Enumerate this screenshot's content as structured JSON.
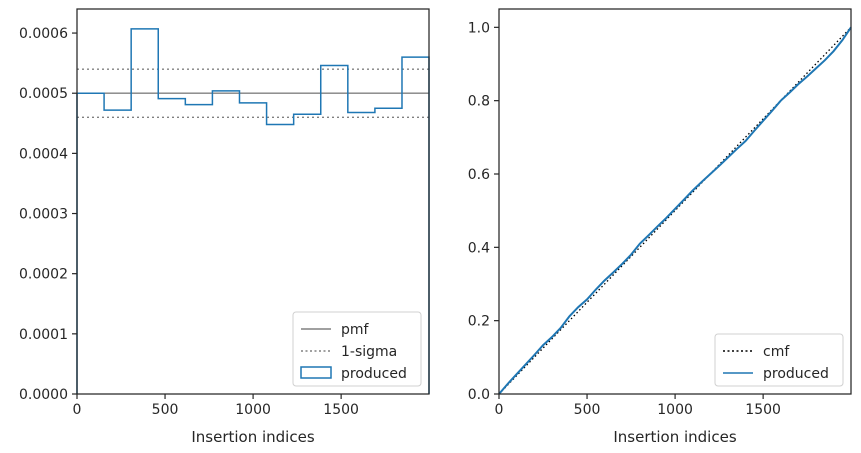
{
  "chart_data": [
    {
      "type": "step",
      "xlabel": "Insertion indices",
      "ylabel": "",
      "xlim": [
        0,
        1999
      ],
      "ylim": [
        0,
        0.00064
      ],
      "xticks": [
        0,
        500,
        1000,
        1500
      ],
      "xtick_labels": [
        "0",
        "500",
        "1000",
        "1500"
      ],
      "yticks": [
        0,
        0.0001,
        0.0002,
        0.0003,
        0.0004,
        0.0005,
        0.0006
      ],
      "ytick_labels": [
        "0.0000",
        "0.0001",
        "0.0002",
        "0.0003",
        "0.0004",
        "0.0005",
        "0.0006"
      ],
      "grid": false,
      "legend_position": "lower right",
      "bin_edges": [
        0,
        153.8,
        307.6,
        461.4,
        615.2,
        769,
        922.8,
        1076.6,
        1230.4,
        1384.2,
        1538,
        1691.8,
        1845.6,
        1999
      ],
      "series": [
        {
          "name": "pmf",
          "style": "solid",
          "color": "#808080",
          "values": [
            0.0005
          ]
        },
        {
          "name": "1-sigma",
          "style": "dotted",
          "color": "#808080",
          "values": [
            0.00054,
            0.00046
          ]
        },
        {
          "name": "produced",
          "style": "step",
          "color": "#1f77b4",
          "values": [
            0.0005,
            0.000472,
            0.000607,
            0.000491,
            0.000481,
            0.000504,
            0.000484,
            0.000448,
            0.000465,
            0.000546,
            0.000468,
            0.000475,
            0.00056
          ]
        }
      ]
    },
    {
      "type": "line",
      "xlabel": "Insertion indices",
      "ylabel": "",
      "xlim": [
        0,
        1999
      ],
      "ylim": [
        0,
        1.05
      ],
      "xticks": [
        0,
        500,
        1000,
        1500
      ],
      "xtick_labels": [
        "0",
        "500",
        "1000",
        "1500"
      ],
      "yticks": [
        0,
        0.2,
        0.4,
        0.6,
        0.8,
        1.0
      ],
      "ytick_labels": [
        "0.0",
        "0.2",
        "0.4",
        "0.6",
        "0.8",
        "1.0"
      ],
      "grid": false,
      "legend_position": "lower right",
      "series": [
        {
          "name": "cmf",
          "style": "dotted",
          "color": "#000000",
          "x": [
            0,
            1999
          ],
          "y": [
            0,
            1.0
          ]
        },
        {
          "name": "produced",
          "style": "solid",
          "color": "#1f77b4",
          "x": [
            0,
            50,
            100,
            150,
            200,
            250,
            300,
            350,
            400,
            450,
            500,
            550,
            600,
            650,
            700,
            750,
            800,
            850,
            900,
            950,
            1000,
            1050,
            1100,
            1150,
            1200,
            1250,
            1300,
            1350,
            1400,
            1450,
            1500,
            1550,
            1600,
            1650,
            1700,
            1750,
            1800,
            1850,
            1900,
            1950,
            1999
          ],
          "y": [
            0,
            0.028,
            0.054,
            0.08,
            0.106,
            0.133,
            0.155,
            0.18,
            0.212,
            0.237,
            0.258,
            0.285,
            0.31,
            0.332,
            0.355,
            0.38,
            0.41,
            0.433,
            0.457,
            0.48,
            0.505,
            0.53,
            0.555,
            0.578,
            0.6,
            0.622,
            0.645,
            0.668,
            0.69,
            0.718,
            0.745,
            0.772,
            0.8,
            0.822,
            0.845,
            0.866,
            0.888,
            0.91,
            0.935,
            0.965,
            1.0
          ]
        }
      ]
    }
  ]
}
